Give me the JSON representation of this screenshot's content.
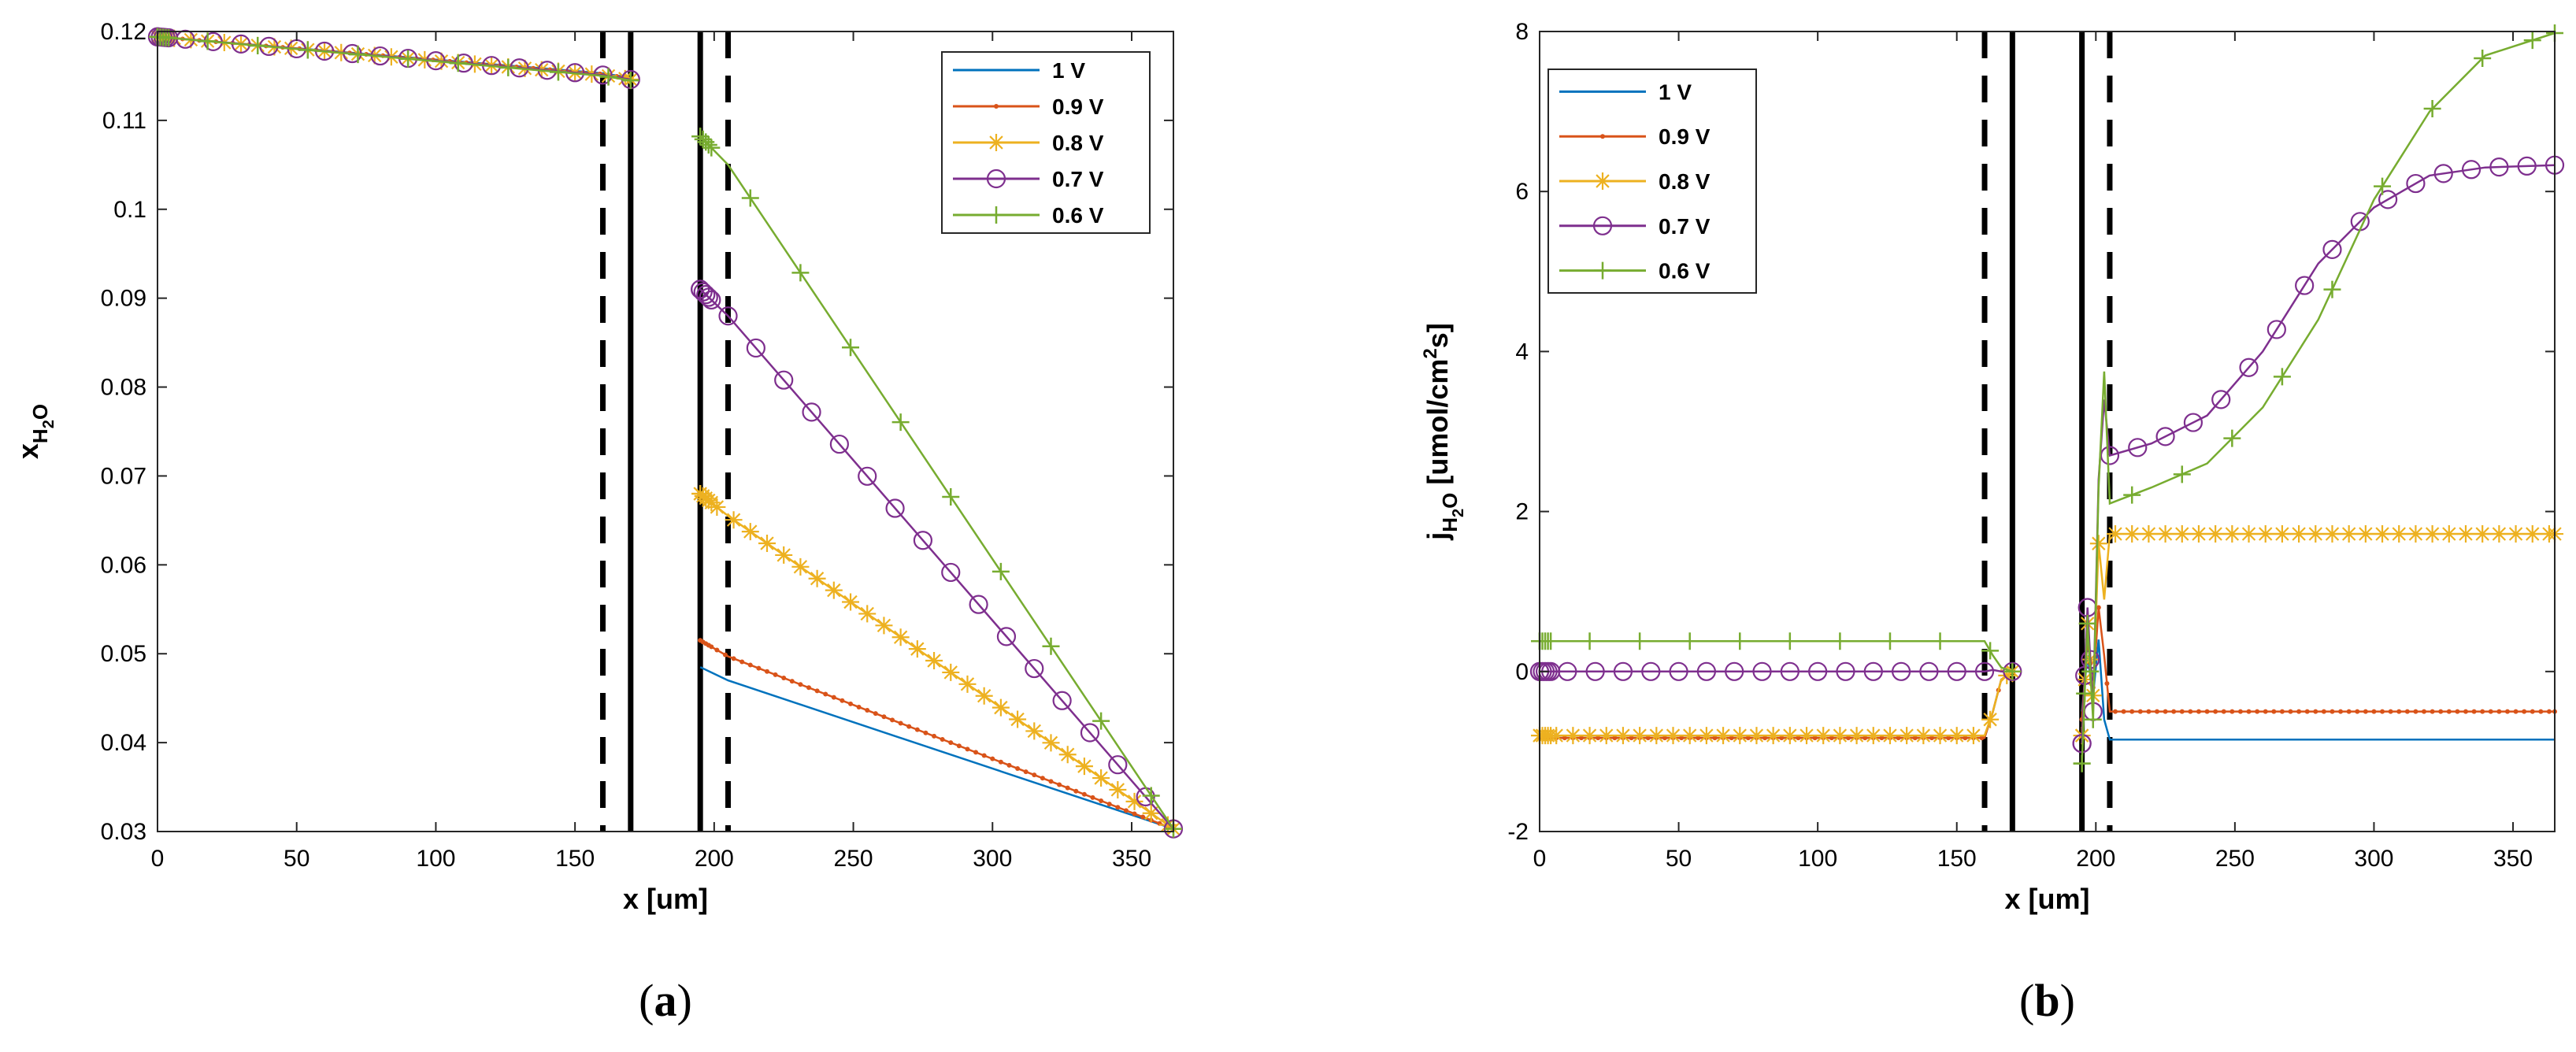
{
  "colors": {
    "1 V": "#0072BD",
    "0.9 V": "#D95319",
    "0.8 V": "#EDB120",
    "0.7 V": "#7E2F8E",
    "0.6 V": "#77AC30"
  },
  "chart_data": [
    {
      "type": "line",
      "panel_label": {
        "open": "(",
        "letter": "a",
        "close": ")"
      },
      "title": "",
      "xlabel": "x [um]",
      "ylabel": {
        "main": "x",
        "sub1": "H",
        "sub2": "2",
        "sub3": "O"
      },
      "xlim": [
        0,
        365
      ],
      "ylim": [
        0.03,
        0.12
      ],
      "xticks": [
        0,
        50,
        100,
        150,
        200,
        250,
        300,
        350
      ],
      "yticks": [
        0.03,
        0.04,
        0.05,
        0.06,
        0.07,
        0.08,
        0.09,
        0.1,
        0.11,
        0.12
      ],
      "ytick_labels": [
        "0.03",
        "0.04",
        "0.05",
        "0.06",
        "0.07",
        "0.08",
        "0.09",
        "0.1",
        "0.11",
        "0.12"
      ],
      "legend_position": "top-right",
      "vlines": [
        {
          "x": 160,
          "style": "dashed"
        },
        {
          "x": 170,
          "style": "solid"
        },
        {
          "x": 195,
          "style": "solid"
        },
        {
          "x": 205,
          "style": "dashed"
        }
      ],
      "series": [
        {
          "name": "1 V",
          "marker": "none",
          "segments": [
            {
              "x": [
                0,
                160,
                170
              ],
              "y": [
                0.1194,
                0.1153,
                0.1148
              ]
            },
            {
              "x": [
                195,
                205,
                365
              ],
              "y": [
                0.0485,
                0.047,
                0.0303
              ]
            }
          ]
        },
        {
          "name": "0.9 V",
          "marker": "dot",
          "segments": [
            {
              "x": [
                0,
                160,
                170
              ],
              "y": [
                0.1194,
                0.1152,
                0.1147
              ]
            },
            {
              "x": [
                195,
                205,
                365
              ],
              "y": [
                0.0515,
                0.0497,
                0.0303
              ]
            }
          ]
        },
        {
          "name": "0.8 V",
          "marker": "asterisk",
          "segments": [
            {
              "x": [
                0,
                160,
                170
              ],
              "y": [
                0.1194,
                0.1151,
                0.1146
              ]
            },
            {
              "x": [
                195,
                205,
                365
              ],
              "y": [
                0.068,
                0.0655,
                0.0303
              ]
            }
          ]
        },
        {
          "name": "0.7 V",
          "marker": "circle",
          "segments": [
            {
              "x": [
                0,
                160,
                170
              ],
              "y": [
                0.1194,
                0.1151,
                0.1146
              ]
            },
            {
              "x": [
                195,
                205,
                365
              ],
              "y": [
                0.091,
                0.088,
                0.0303
              ]
            }
          ]
        },
        {
          "name": "0.6 V",
          "marker": "plus",
          "segments": [
            {
              "x": [
                0,
                160,
                170
              ],
              "y": [
                0.1194,
                0.115,
                0.1145
              ]
            },
            {
              "x": [
                195,
                205,
                365
              ],
              "y": [
                0.1082,
                0.105,
                0.0303
              ]
            }
          ]
        }
      ]
    },
    {
      "type": "line",
      "panel_label": {
        "open": "(",
        "letter": "b",
        "close": ")"
      },
      "title": "",
      "xlabel": "x [um]",
      "ylabel": {
        "main": "j",
        "sub1": "H",
        "sub2": "2",
        "sub3": "O",
        "unit_pre": " [umol/cm",
        "unit_sup": "2",
        "unit_post": "s]"
      },
      "xlim": [
        0,
        365
      ],
      "ylim": [
        -2,
        8
      ],
      "xticks": [
        0,
        50,
        100,
        150,
        200,
        250,
        300,
        350
      ],
      "yticks": [
        -2,
        0,
        2,
        4,
        6,
        8
      ],
      "ytick_labels": [
        "-2",
        "0",
        "2",
        "4",
        "6",
        "8"
      ],
      "legend_position": "top-left",
      "vlines": [
        {
          "x": 160,
          "style": "dashed"
        },
        {
          "x": 170,
          "style": "solid"
        },
        {
          "x": 195,
          "style": "solid"
        },
        {
          "x": 205,
          "style": "dashed"
        }
      ],
      "series": [
        {
          "name": "1 V",
          "marker": "none",
          "segments": [
            {
              "x": [
                0,
                160,
                163,
                166,
                170
              ],
              "y": [
                -0.83,
                -0.83,
                -0.5,
                -0.1,
                0.0
              ]
            },
            {
              "x": [
                195,
                197,
                199,
                201,
                203,
                205,
                365
              ],
              "y": [
                -0.5,
                0.2,
                -0.3,
                0.4,
                -0.6,
                -0.85,
                -0.85
              ]
            }
          ]
        },
        {
          "name": "0.9 V",
          "marker": "dot",
          "segments": [
            {
              "x": [
                0,
                160,
                163,
                166,
                170
              ],
              "y": [
                -0.83,
                -0.83,
                -0.5,
                -0.1,
                0.0
              ]
            },
            {
              "x": [
                195,
                197,
                199,
                201,
                203,
                205,
                365
              ],
              "y": [
                -0.6,
                0.4,
                -0.2,
                0.8,
                0.2,
                -0.5,
                -0.5
              ]
            }
          ]
        },
        {
          "name": "0.8 V",
          "marker": "asterisk",
          "segments": [
            {
              "x": [
                0,
                160,
                163,
                166,
                170
              ],
              "y": [
                -0.8,
                -0.8,
                -0.5,
                -0.1,
                0.0
              ]
            },
            {
              "x": [
                195,
                197,
                199,
                201,
                203,
                205,
                365
              ],
              "y": [
                -0.8,
                0.6,
                -0.3,
                1.6,
                0.9,
                1.72,
                1.72
              ]
            }
          ]
        },
        {
          "name": "0.7 V",
          "marker": "circle",
          "segments": [
            {
              "x": [
                0,
                160,
                163,
                166,
                170
              ],
              "y": [
                0.0,
                0.0,
                0.02,
                0.0,
                0.0
              ]
            },
            {
              "x": [
                195,
                197,
                199,
                201,
                203,
                205,
                220,
                240,
                260,
                280,
                300,
                320,
                340,
                365
              ],
              "y": [
                -0.9,
                0.8,
                -0.5,
                2.4,
                3.4,
                2.7,
                2.85,
                3.2,
                4.0,
                5.1,
                5.8,
                6.2,
                6.3,
                6.33
              ]
            }
          ]
        },
        {
          "name": "0.6 V",
          "marker": "plus",
          "segments": [
            {
              "x": [
                0,
                160,
                163,
                166,
                170
              ],
              "y": [
                0.38,
                0.38,
                0.2,
                0.05,
                0.0
              ]
            },
            {
              "x": [
                195,
                197,
                199,
                201,
                203,
                205,
                220,
                240,
                260,
                280,
                300,
                320,
                340,
                365
              ],
              "y": [
                -1.15,
                0.6,
                -0.6,
                2.3,
                3.75,
                2.1,
                2.3,
                2.6,
                3.3,
                4.4,
                5.9,
                7.0,
                7.7,
                7.98
              ]
            }
          ]
        }
      ]
    }
  ]
}
